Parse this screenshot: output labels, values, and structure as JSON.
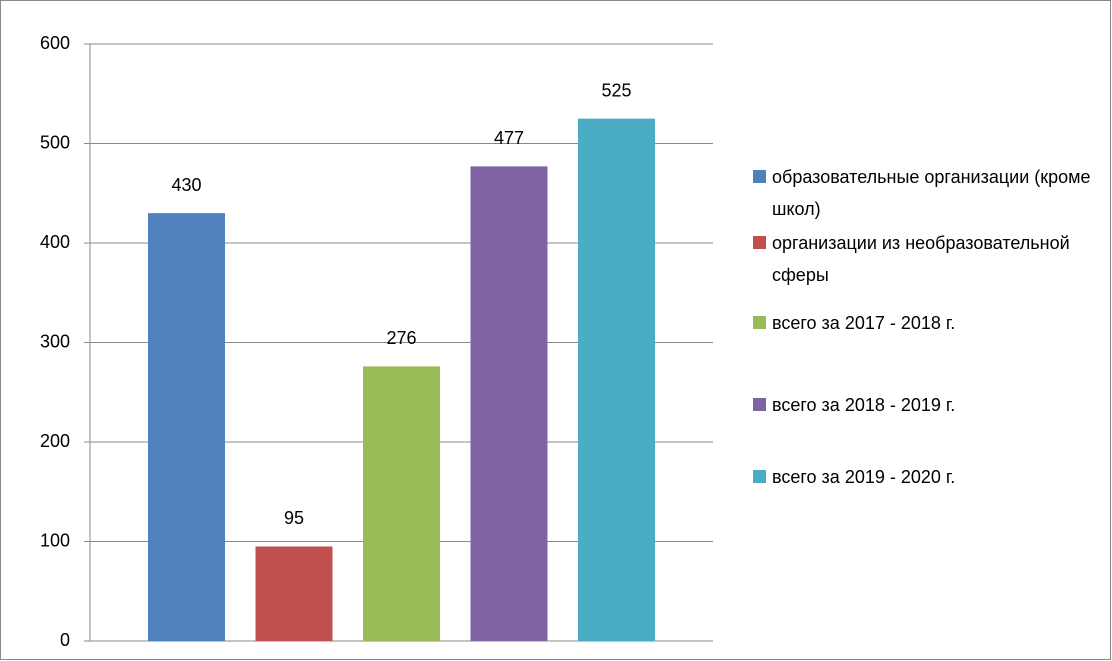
{
  "chart_data": {
    "type": "bar",
    "categories": [
      null
    ],
    "series": [
      {
        "name": "образовательные организации (кроме школ)",
        "color": "#4f81bd",
        "values": [
          430
        ]
      },
      {
        "name": "организации из необразовательной сферы",
        "color": "#c0504d",
        "values": [
          95
        ]
      },
      {
        "name": "всего за 2017 - 2018 г.",
        "color": "#9bbb59",
        "values": [
          276
        ]
      },
      {
        "name": "всего за 2018 - 2019 г.",
        "color": "#8064a2",
        "values": [
          477
        ]
      },
      {
        "name": "всего за 2019 - 2020 г.",
        "color": "#4bacc6",
        "values": [
          525
        ]
      }
    ],
    "ylim": [
      0,
      600
    ],
    "yticks": [
      0,
      100,
      200,
      300,
      400,
      500,
      600
    ],
    "grid": true,
    "legend": "right"
  }
}
